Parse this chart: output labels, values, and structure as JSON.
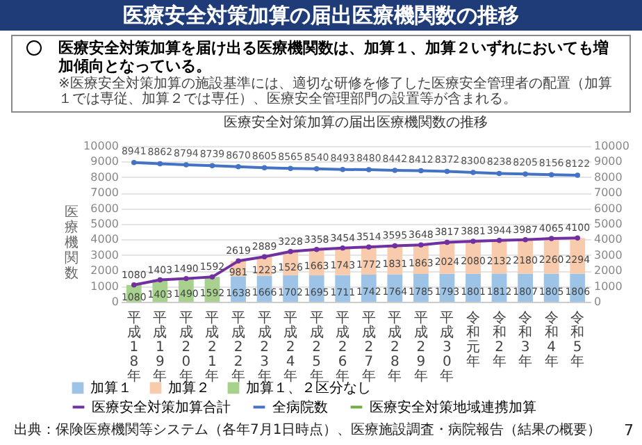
{
  "chart_data": {
    "type": "bar",
    "title": "医療安全対策加算の届出医療機関数の推移",
    "subtitle": "医療安全対策加算を届け出る医療機関数は、加算１、加算２いずれにおいても増加傾向となっている。",
    "annotations": [
      "※医療安全対策加算の施設基準には、適切な研修を修了した医療安全管理者の配置（加算１では専従、加算２では専任）、医療安全管理部門の設置等が含まれる。",
      "医療安全対策加算の届出医療機関数の推移",
      "出典：保険医療機関等システム（各年7月1日時点）、医療施設調査・病院報告（結果の概要）",
      "7"
    ],
    "ylabel": "医療機関数",
    "categories": [
      "平成18年",
      "平成19年",
      "平成20年",
      "平成21年",
      "平成22年",
      "平成23年",
      "平成24年",
      "平成25年",
      "平成26年",
      "平成27年",
      "平成28年",
      "平成29年",
      "平成30年",
      "令和元年",
      "令和2年",
      "令和3年",
      "令和4年",
      "令和5年"
    ],
    "stacked": true,
    "series": [
      {
        "name": "加算１",
        "color": "#9dc3e6",
        "values": [
          null,
          null,
          null,
          null,
          1638,
          1666,
          1702,
          1695,
          1711,
          1742,
          1764,
          1785,
          1793,
          1801,
          1812,
          1807,
          1805,
          1806
        ]
      },
      {
        "name": "加算２",
        "color": "#f8cbad",
        "values": [
          null,
          null,
          null,
          null,
          981,
          1223,
          1526,
          1663,
          1743,
          1772,
          1831,
          1863,
          2024,
          2080,
          2132,
          2180,
          2260,
          2294
        ]
      },
      {
        "name": "加算１、２区分なし",
        "color": "#a9d18e",
        "values": [
          1080,
          1403,
          1490,
          1592,
          null,
          null,
          null,
          null,
          null,
          null,
          null,
          null,
          null,
          null,
          null,
          null,
          null,
          null
        ]
      },
      {
        "name": "医療安全対策加算合計",
        "type": "line",
        "color": "#7030a0",
        "values": [
          1080,
          1403,
          1490,
          1592,
          2619,
          2889,
          3228,
          3358,
          3454,
          3514,
          3595,
          3648,
          3817,
          3881,
          3944,
          3987,
          4065,
          4100
        ]
      },
      {
        "name": "全病院数",
        "type": "line",
        "axis": "y2",
        "color": "#4472c4",
        "values": [
          8941,
          8862,
          8794,
          8739,
          8670,
          8605,
          8565,
          8540,
          8493,
          8480,
          8442,
          8412,
          8372,
          8300,
          8238,
          8205,
          8156,
          8122
        ]
      },
      {
        "name": "医療安全対策地域連携加算",
        "type": "line",
        "color": "#70ad47",
        "values": [
          null,
          null,
          null,
          null,
          null,
          null,
          null,
          null,
          null,
          null,
          null,
          null,
          null,
          null,
          null,
          null,
          null,
          null
        ]
      }
    ],
    "ylim": [
      0,
      10000
    ],
    "yticks": [
      0,
      1000,
      2000,
      3000,
      4000,
      5000,
      6000,
      7000,
      8000,
      9000,
      10000
    ],
    "y2lim": [
      0,
      10000
    ],
    "y2ticks": [
      0,
      1000,
      2000,
      3000,
      4000,
      5000,
      6000,
      7000,
      8000,
      9000,
      10000
    ],
    "grid": "y",
    "legend": "bottom",
    "marker": "circle",
    "line_style": "solid",
    "data_labels": true
  }
}
